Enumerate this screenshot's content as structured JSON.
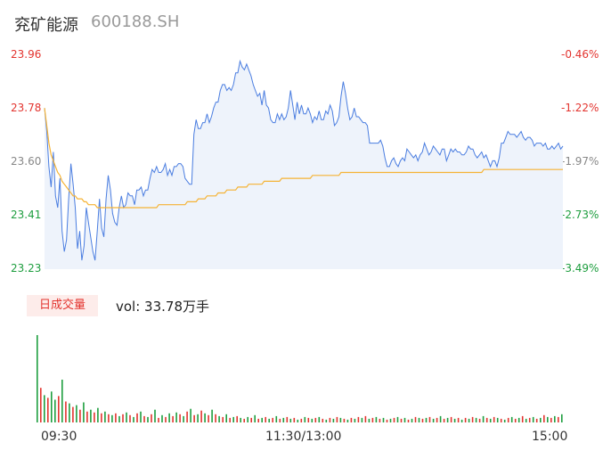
{
  "header": {
    "name": "兖矿能源",
    "code": "600188.SH"
  },
  "price_labels": [
    {
      "text": "23.96",
      "color": "#e3342f"
    },
    {
      "text": "23.78",
      "color": "#e3342f"
    },
    {
      "text": "23.60",
      "color": "#888888"
    },
    {
      "text": "23.41",
      "color": "#1e9e3f"
    },
    {
      "text": "23.23",
      "color": "#1e9e3f"
    }
  ],
  "pct_labels": [
    {
      "text": "-0.46%",
      "color": "#e3342f"
    },
    {
      "text": "-1.22%",
      "color": "#e3342f"
    },
    {
      "text": "-1.97%",
      "color": "#888888"
    },
    {
      "text": "-2.73%",
      "color": "#1e9e3f"
    },
    {
      "text": "-3.49%",
      "color": "#1e9e3f"
    }
  ],
  "volume": {
    "badge": "日成交量",
    "text": "vol: 33.78万手"
  },
  "time_labels": [
    "09:30",
    "11:30/13:00",
    "15:00"
  ],
  "colors": {
    "price_line": "#4a7de0",
    "avg_line": "#f5b335",
    "up": "#e3342f",
    "down": "#1e9e3f",
    "fill": "#eef3fb"
  },
  "chart_data": {
    "type": "line",
    "ylim": [
      23.23,
      23.96
    ],
    "series": [
      {
        "values": [
          23.78,
          23.7,
          23.58,
          23.51,
          23.63,
          23.48,
          23.44,
          23.54,
          23.36,
          23.29,
          23.33,
          23.47,
          23.59,
          23.52,
          23.44,
          23.3,
          23.36,
          23.26,
          23.31,
          23.44,
          23.39,
          23.34,
          23.29,
          23.26,
          23.36,
          23.47,
          23.37,
          23.34,
          23.47,
          23.55,
          23.5,
          23.42,
          23.39,
          23.38,
          23.44,
          23.48,
          23.44,
          23.45,
          23.49,
          23.48,
          23.48,
          23.45,
          23.5,
          23.5,
          23.51,
          23.48,
          23.5,
          23.5,
          23.54,
          23.57,
          23.56,
          23.58,
          23.56,
          23.56,
          23.57,
          23.59,
          23.55,
          23.57,
          23.55,
          23.58,
          23.58,
          23.59,
          23.59,
          23.58,
          23.54,
          23.53,
          23.52,
          23.52,
          23.69,
          23.74,
          23.71,
          23.71,
          23.73,
          23.73,
          23.76,
          23.73,
          23.75,
          23.78,
          23.8,
          23.8,
          23.84,
          23.86,
          23.86,
          23.84,
          23.85,
          23.84,
          23.86,
          23.9,
          23.9,
          23.94,
          23.92,
          23.91,
          23.93,
          23.91,
          23.89,
          23.86,
          23.84,
          23.82,
          23.83,
          23.79,
          23.84,
          23.79,
          23.78,
          23.74,
          23.73,
          23.73,
          23.76,
          23.74,
          23.76,
          23.74,
          23.75,
          23.78,
          23.84,
          23.79,
          23.74,
          23.8,
          23.76,
          23.79,
          23.76,
          23.76,
          23.78,
          23.76,
          23.73,
          23.75,
          23.74,
          23.77,
          23.74,
          23.74,
          23.77,
          23.76,
          23.79,
          23.77,
          23.72,
          23.73,
          23.75,
          23.82,
          23.87,
          23.83,
          23.78,
          23.74,
          23.75,
          23.78,
          23.75,
          23.75,
          23.74,
          23.73,
          23.73,
          23.72,
          23.66,
          23.66,
          23.66,
          23.66,
          23.66,
          23.67,
          23.65,
          23.61,
          23.58,
          23.58,
          23.6,
          23.61,
          23.59,
          23.58,
          23.6,
          23.61,
          23.6,
          23.64,
          23.63,
          23.62,
          23.61,
          23.62,
          23.6,
          23.62,
          23.63,
          23.66,
          23.64,
          23.62,
          23.63,
          23.65,
          23.64,
          23.63,
          23.62,
          23.64,
          23.64,
          23.6,
          23.62,
          23.64,
          23.63,
          23.64,
          23.63,
          23.63,
          23.62,
          23.62,
          23.63,
          23.65,
          23.64,
          23.64,
          23.62,
          23.61,
          23.62,
          23.63,
          23.61,
          23.62,
          23.6,
          23.58,
          23.6,
          23.6,
          23.58,
          23.61,
          23.66,
          23.66,
          23.68,
          23.7,
          23.69,
          23.69,
          23.69,
          23.68,
          23.69,
          23.7,
          23.68,
          23.67,
          23.68,
          23.68,
          23.67,
          23.65,
          23.66,
          23.66,
          23.66,
          23.65,
          23.66,
          23.64,
          23.64,
          23.65,
          23.64,
          23.65,
          23.66,
          23.64,
          23.65
        ]
      },
      {
        "values": [
          23.78,
          23.72,
          23.66,
          23.62,
          23.6,
          23.58,
          23.56,
          23.55,
          23.53,
          23.52,
          23.51,
          23.5,
          23.49,
          23.48,
          23.48,
          23.47,
          23.47,
          23.47,
          23.46,
          23.46,
          23.45,
          23.45,
          23.45,
          23.45,
          23.44,
          23.44,
          23.44,
          23.44,
          23.44,
          23.44,
          23.44,
          23.44,
          23.44,
          23.44,
          23.44,
          23.44,
          23.44,
          23.44,
          23.44,
          23.44,
          23.44,
          23.44,
          23.44,
          23.44,
          23.44,
          23.44,
          23.44,
          23.44,
          23.44,
          23.44,
          23.44,
          23.44,
          23.45,
          23.45,
          23.45,
          23.45,
          23.45,
          23.45,
          23.45,
          23.45,
          23.45,
          23.45,
          23.45,
          23.45,
          23.45,
          23.46,
          23.46,
          23.46,
          23.46,
          23.46,
          23.47,
          23.47,
          23.47,
          23.47,
          23.48,
          23.48,
          23.48,
          23.48,
          23.48,
          23.49,
          23.49,
          23.49,
          23.49,
          23.5,
          23.5,
          23.5,
          23.5,
          23.5,
          23.51,
          23.51,
          23.51,
          23.51,
          23.51,
          23.52,
          23.52,
          23.52,
          23.52,
          23.52,
          23.52,
          23.52,
          23.53,
          23.53,
          23.53,
          23.53,
          23.53,
          23.53,
          23.53,
          23.53,
          23.54,
          23.54,
          23.54,
          23.54,
          23.54,
          23.54,
          23.54,
          23.54,
          23.54,
          23.54,
          23.54,
          23.54,
          23.54,
          23.54,
          23.55,
          23.55,
          23.55,
          23.55,
          23.55,
          23.55,
          23.55,
          23.55,
          23.55,
          23.55,
          23.55,
          23.55,
          23.55,
          23.56,
          23.56,
          23.56,
          23.56,
          23.56,
          23.56,
          23.56,
          23.56,
          23.56,
          23.56,
          23.56,
          23.56,
          23.56,
          23.56,
          23.56,
          23.56,
          23.56,
          23.56,
          23.56,
          23.56,
          23.56,
          23.56,
          23.56,
          23.56,
          23.56,
          23.56,
          23.56,
          23.56,
          23.56,
          23.56,
          23.56,
          23.56,
          23.56,
          23.56,
          23.56,
          23.56,
          23.56,
          23.56,
          23.56,
          23.56,
          23.56,
          23.56,
          23.56,
          23.56,
          23.56,
          23.56,
          23.56,
          23.56,
          23.56,
          23.56,
          23.56,
          23.56,
          23.56,
          23.56,
          23.56,
          23.56,
          23.56,
          23.56,
          23.56,
          23.56,
          23.56,
          23.56,
          23.56,
          23.56,
          23.56,
          23.57,
          23.57,
          23.57,
          23.57,
          23.57,
          23.57,
          23.57,
          23.57,
          23.57,
          23.57,
          23.57,
          23.57,
          23.57,
          23.57,
          23.57,
          23.57,
          23.57,
          23.57,
          23.57,
          23.57,
          23.57,
          23.57,
          23.57,
          23.57,
          23.57,
          23.57,
          23.57,
          23.57,
          23.57,
          23.57,
          23.57,
          23.57,
          23.57,
          23.57,
          23.57,
          23.57,
          23.57
        ]
      }
    ],
    "volume": [
      {
        "v": 96,
        "d": "down"
      },
      {
        "v": 38,
        "d": "up"
      },
      {
        "v": 30,
        "d": "down"
      },
      {
        "v": 27,
        "d": "up"
      },
      {
        "v": 34,
        "d": "down"
      },
      {
        "v": 25,
        "d": "down"
      },
      {
        "v": 29,
        "d": "up"
      },
      {
        "v": 47,
        "d": "down"
      },
      {
        "v": 23,
        "d": "up"
      },
      {
        "v": 21,
        "d": "down"
      },
      {
        "v": 17,
        "d": "up"
      },
      {
        "v": 19,
        "d": "down"
      },
      {
        "v": 14,
        "d": "up"
      },
      {
        "v": 22,
        "d": "down"
      },
      {
        "v": 12,
        "d": "up"
      },
      {
        "v": 14,
        "d": "down"
      },
      {
        "v": 11,
        "d": "up"
      },
      {
        "v": 16,
        "d": "down"
      },
      {
        "v": 10,
        "d": "up"
      },
      {
        "v": 12,
        "d": "down"
      },
      {
        "v": 9,
        "d": "up"
      },
      {
        "v": 8,
        "d": "down"
      },
      {
        "v": 10,
        "d": "up"
      },
      {
        "v": 7,
        "d": "down"
      },
      {
        "v": 9,
        "d": "up"
      },
      {
        "v": 11,
        "d": "down"
      },
      {
        "v": 8,
        "d": "up"
      },
      {
        "v": 6,
        "d": "down"
      },
      {
        "v": 10,
        "d": "up"
      },
      {
        "v": 12,
        "d": "down"
      },
      {
        "v": 7,
        "d": "up"
      },
      {
        "v": 6,
        "d": "down"
      },
      {
        "v": 9,
        "d": "up"
      },
      {
        "v": 14,
        "d": "down"
      },
      {
        "v": 5,
        "d": "up"
      },
      {
        "v": 8,
        "d": "down"
      },
      {
        "v": 6,
        "d": "up"
      },
      {
        "v": 10,
        "d": "down"
      },
      {
        "v": 7,
        "d": "up"
      },
      {
        "v": 11,
        "d": "down"
      },
      {
        "v": 9,
        "d": "up"
      },
      {
        "v": 7,
        "d": "down"
      },
      {
        "v": 12,
        "d": "up"
      },
      {
        "v": 15,
        "d": "down"
      },
      {
        "v": 8,
        "d": "up"
      },
      {
        "v": 9,
        "d": "down"
      },
      {
        "v": 13,
        "d": "up"
      },
      {
        "v": 10,
        "d": "down"
      },
      {
        "v": 8,
        "d": "up"
      },
      {
        "v": 14,
        "d": "down"
      },
      {
        "v": 9,
        "d": "up"
      },
      {
        "v": 7,
        "d": "down"
      },
      {
        "v": 6,
        "d": "up"
      },
      {
        "v": 9,
        "d": "down"
      },
      {
        "v": 5,
        "d": "up"
      },
      {
        "v": 6,
        "d": "down"
      },
      {
        "v": 7,
        "d": "up"
      },
      {
        "v": 5,
        "d": "down"
      },
      {
        "v": 4,
        "d": "up"
      },
      {
        "v": 6,
        "d": "down"
      },
      {
        "v": 5,
        "d": "up"
      },
      {
        "v": 8,
        "d": "down"
      },
      {
        "v": 4,
        "d": "up"
      },
      {
        "v": 5,
        "d": "down"
      },
      {
        "v": 6,
        "d": "up"
      },
      {
        "v": 4,
        "d": "down"
      },
      {
        "v": 5,
        "d": "up"
      },
      {
        "v": 7,
        "d": "down"
      },
      {
        "v": 4,
        "d": "up"
      },
      {
        "v": 5,
        "d": "down"
      },
      {
        "v": 6,
        "d": "up"
      },
      {
        "v": 4,
        "d": "down"
      },
      {
        "v": 5,
        "d": "up"
      },
      {
        "v": 3,
        "d": "down"
      },
      {
        "v": 4,
        "d": "up"
      },
      {
        "v": 6,
        "d": "down"
      },
      {
        "v": 5,
        "d": "up"
      },
      {
        "v": 4,
        "d": "down"
      },
      {
        "v": 5,
        "d": "up"
      },
      {
        "v": 6,
        "d": "down"
      },
      {
        "v": 4,
        "d": "up"
      },
      {
        "v": 3,
        "d": "down"
      },
      {
        "v": 5,
        "d": "up"
      },
      {
        "v": 4,
        "d": "down"
      },
      {
        "v": 6,
        "d": "up"
      },
      {
        "v": 5,
        "d": "down"
      },
      {
        "v": 4,
        "d": "up"
      },
      {
        "v": 3,
        "d": "down"
      },
      {
        "v": 5,
        "d": "up"
      },
      {
        "v": 4,
        "d": "down"
      },
      {
        "v": 6,
        "d": "up"
      },
      {
        "v": 5,
        "d": "down"
      },
      {
        "v": 7,
        "d": "up"
      },
      {
        "v": 4,
        "d": "down"
      },
      {
        "v": 5,
        "d": "up"
      },
      {
        "v": 6,
        "d": "down"
      },
      {
        "v": 4,
        "d": "up"
      },
      {
        "v": 5,
        "d": "down"
      },
      {
        "v": 3,
        "d": "up"
      },
      {
        "v": 4,
        "d": "down"
      },
      {
        "v": 5,
        "d": "up"
      },
      {
        "v": 6,
        "d": "down"
      },
      {
        "v": 4,
        "d": "up"
      },
      {
        "v": 5,
        "d": "down"
      },
      {
        "v": 3,
        "d": "up"
      },
      {
        "v": 4,
        "d": "down"
      },
      {
        "v": 6,
        "d": "up"
      },
      {
        "v": 5,
        "d": "down"
      },
      {
        "v": 4,
        "d": "up"
      },
      {
        "v": 5,
        "d": "down"
      },
      {
        "v": 6,
        "d": "up"
      },
      {
        "v": 4,
        "d": "down"
      },
      {
        "v": 5,
        "d": "up"
      },
      {
        "v": 7,
        "d": "down"
      },
      {
        "v": 4,
        "d": "up"
      },
      {
        "v": 5,
        "d": "down"
      },
      {
        "v": 6,
        "d": "up"
      },
      {
        "v": 4,
        "d": "down"
      },
      {
        "v": 5,
        "d": "up"
      },
      {
        "v": 3,
        "d": "down"
      },
      {
        "v": 5,
        "d": "up"
      },
      {
        "v": 4,
        "d": "down"
      },
      {
        "v": 6,
        "d": "up"
      },
      {
        "v": 5,
        "d": "down"
      },
      {
        "v": 4,
        "d": "up"
      },
      {
        "v": 7,
        "d": "down"
      },
      {
        "v": 5,
        "d": "up"
      },
      {
        "v": 4,
        "d": "down"
      },
      {
        "v": 6,
        "d": "up"
      },
      {
        "v": 5,
        "d": "down"
      },
      {
        "v": 4,
        "d": "up"
      },
      {
        "v": 3,
        "d": "down"
      },
      {
        "v": 5,
        "d": "up"
      },
      {
        "v": 6,
        "d": "down"
      },
      {
        "v": 4,
        "d": "up"
      },
      {
        "v": 5,
        "d": "down"
      },
      {
        "v": 7,
        "d": "up"
      },
      {
        "v": 4,
        "d": "down"
      },
      {
        "v": 5,
        "d": "up"
      },
      {
        "v": 6,
        "d": "down"
      },
      {
        "v": 4,
        "d": "up"
      },
      {
        "v": 5,
        "d": "down"
      },
      {
        "v": 8,
        "d": "up"
      },
      {
        "v": 6,
        "d": "down"
      },
      {
        "v": 5,
        "d": "up"
      },
      {
        "v": 7,
        "d": "down"
      },
      {
        "v": 6,
        "d": "up"
      },
      {
        "v": 9,
        "d": "down"
      }
    ]
  }
}
